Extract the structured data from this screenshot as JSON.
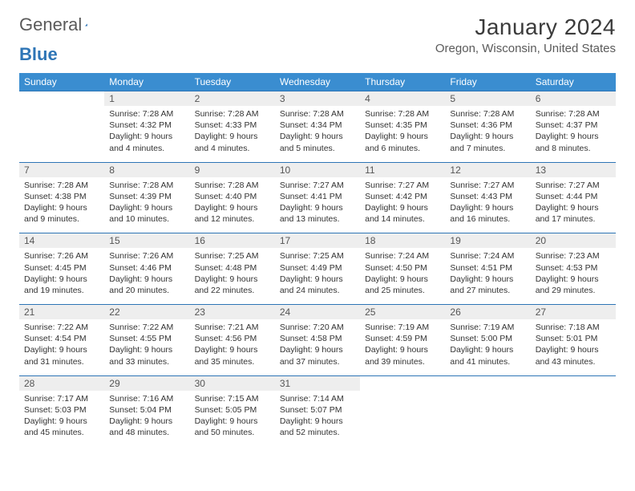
{
  "logo": {
    "text1": "General",
    "text2": "Blue"
  },
  "title": "January 2024",
  "location": "Oregon, Wisconsin, United States",
  "colors": {
    "header_bg": "#3a8dd0",
    "header_text": "#ffffff",
    "daynum_bg": "#eeeeee",
    "border": "#2e75b6",
    "body_text": "#333333",
    "title_text": "#3b3b3b",
    "location_text": "#5a5a5a"
  },
  "weekdays": [
    "Sunday",
    "Monday",
    "Tuesday",
    "Wednesday",
    "Thursday",
    "Friday",
    "Saturday"
  ],
  "weeks": [
    {
      "nums": [
        "",
        "1",
        "2",
        "3",
        "4",
        "5",
        "6"
      ],
      "cells": [
        "",
        "Sunrise: 7:28 AM\nSunset: 4:32 PM\nDaylight: 9 hours and 4 minutes.",
        "Sunrise: 7:28 AM\nSunset: 4:33 PM\nDaylight: 9 hours and 4 minutes.",
        "Sunrise: 7:28 AM\nSunset: 4:34 PM\nDaylight: 9 hours and 5 minutes.",
        "Sunrise: 7:28 AM\nSunset: 4:35 PM\nDaylight: 9 hours and 6 minutes.",
        "Sunrise: 7:28 AM\nSunset: 4:36 PM\nDaylight: 9 hours and 7 minutes.",
        "Sunrise: 7:28 AM\nSunset: 4:37 PM\nDaylight: 9 hours and 8 minutes."
      ]
    },
    {
      "nums": [
        "7",
        "8",
        "9",
        "10",
        "11",
        "12",
        "13"
      ],
      "cells": [
        "Sunrise: 7:28 AM\nSunset: 4:38 PM\nDaylight: 9 hours and 9 minutes.",
        "Sunrise: 7:28 AM\nSunset: 4:39 PM\nDaylight: 9 hours and 10 minutes.",
        "Sunrise: 7:28 AM\nSunset: 4:40 PM\nDaylight: 9 hours and 12 minutes.",
        "Sunrise: 7:27 AM\nSunset: 4:41 PM\nDaylight: 9 hours and 13 minutes.",
        "Sunrise: 7:27 AM\nSunset: 4:42 PM\nDaylight: 9 hours and 14 minutes.",
        "Sunrise: 7:27 AM\nSunset: 4:43 PM\nDaylight: 9 hours and 16 minutes.",
        "Sunrise: 7:27 AM\nSunset: 4:44 PM\nDaylight: 9 hours and 17 minutes."
      ]
    },
    {
      "nums": [
        "14",
        "15",
        "16",
        "17",
        "18",
        "19",
        "20"
      ],
      "cells": [
        "Sunrise: 7:26 AM\nSunset: 4:45 PM\nDaylight: 9 hours and 19 minutes.",
        "Sunrise: 7:26 AM\nSunset: 4:46 PM\nDaylight: 9 hours and 20 minutes.",
        "Sunrise: 7:25 AM\nSunset: 4:48 PM\nDaylight: 9 hours and 22 minutes.",
        "Sunrise: 7:25 AM\nSunset: 4:49 PM\nDaylight: 9 hours and 24 minutes.",
        "Sunrise: 7:24 AM\nSunset: 4:50 PM\nDaylight: 9 hours and 25 minutes.",
        "Sunrise: 7:24 AM\nSunset: 4:51 PM\nDaylight: 9 hours and 27 minutes.",
        "Sunrise: 7:23 AM\nSunset: 4:53 PM\nDaylight: 9 hours and 29 minutes."
      ]
    },
    {
      "nums": [
        "21",
        "22",
        "23",
        "24",
        "25",
        "26",
        "27"
      ],
      "cells": [
        "Sunrise: 7:22 AM\nSunset: 4:54 PM\nDaylight: 9 hours and 31 minutes.",
        "Sunrise: 7:22 AM\nSunset: 4:55 PM\nDaylight: 9 hours and 33 minutes.",
        "Sunrise: 7:21 AM\nSunset: 4:56 PM\nDaylight: 9 hours and 35 minutes.",
        "Sunrise: 7:20 AM\nSunset: 4:58 PM\nDaylight: 9 hours and 37 minutes.",
        "Sunrise: 7:19 AM\nSunset: 4:59 PM\nDaylight: 9 hours and 39 minutes.",
        "Sunrise: 7:19 AM\nSunset: 5:00 PM\nDaylight: 9 hours and 41 minutes.",
        "Sunrise: 7:18 AM\nSunset: 5:01 PM\nDaylight: 9 hours and 43 minutes."
      ]
    },
    {
      "nums": [
        "28",
        "29",
        "30",
        "31",
        "",
        "",
        ""
      ],
      "cells": [
        "Sunrise: 7:17 AM\nSunset: 5:03 PM\nDaylight: 9 hours and 45 minutes.",
        "Sunrise: 7:16 AM\nSunset: 5:04 PM\nDaylight: 9 hours and 48 minutes.",
        "Sunrise: 7:15 AM\nSunset: 5:05 PM\nDaylight: 9 hours and 50 minutes.",
        "Sunrise: 7:14 AM\nSunset: 5:07 PM\nDaylight: 9 hours and 52 minutes.",
        "",
        "",
        ""
      ]
    }
  ]
}
